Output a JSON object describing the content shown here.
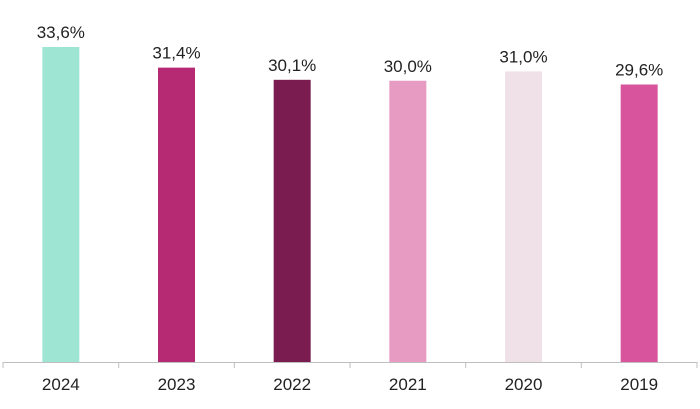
{
  "chart_data": {
    "type": "bar",
    "categories": [
      "2024",
      "2023",
      "2022",
      "2021",
      "2020",
      "2019"
    ],
    "values": [
      33.6,
      31.4,
      30.1,
      30.0,
      31.0,
      29.6
    ],
    "data_labels": [
      "33,6%",
      "31,4%",
      "30,1%",
      "30,0%",
      "31,0%",
      "29,6%"
    ],
    "colors": [
      "#9ee5d3",
      "#b62a74",
      "#7a1c4f",
      "#e79ac2",
      "#f0e0e8",
      "#d8559d"
    ],
    "ylim": [
      0,
      35
    ],
    "grid": false,
    "legend": "none",
    "axis_color": "#bfbfbf"
  }
}
